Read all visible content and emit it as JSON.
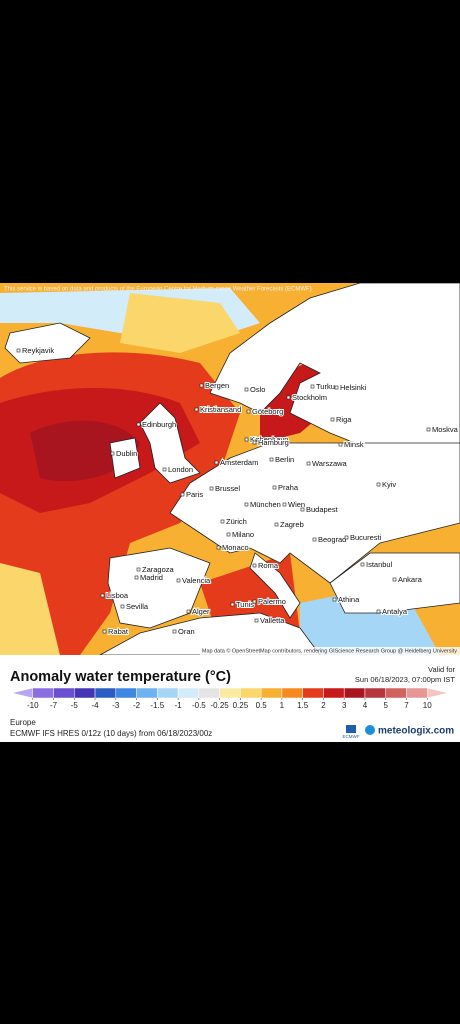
{
  "header": {
    "notice": "This service is based on data and products of the European Centre for Medium-range Weather Forecasts (ECMWF)"
  },
  "map": {
    "attribution": "Map data © OpenStreetMap contributors, rendering GIScience Research Group @ Heidelberg University",
    "cities": [
      "Reykjavik",
      "Bergen",
      "Oslo",
      "Stockholm",
      "Turku",
      "Helsinki",
      "Kristiansand",
      "Göteborg",
      "København",
      "Edinburgh",
      "Dublin",
      "London",
      "Amsterdam",
      "Hamburg",
      "Berlin",
      "Brussel",
      "Paris",
      "Warszawa",
      "Riga",
      "Minsk",
      "Moskva",
      "Kyiv",
      "Praha",
      "Wien",
      "München",
      "Zürich",
      "Milano",
      "Budapest",
      "Zagreb",
      "Beograd",
      "Bucuresti",
      "Monaco",
      "Roma",
      "Zaragoza",
      "Madrid",
      "Lisboa",
      "Sevilla",
      "Valencia",
      "Alger",
      "Tunis",
      "Palermo",
      "Valletta",
      "Athina",
      "Istanbul",
      "Ankara",
      "Antalya",
      "Rabat",
      "Oran"
    ]
  },
  "legend": {
    "title": "Anomaly water temperature (°C)",
    "valid_label": "Valid for",
    "valid_time": "Sun 06/18/2023, 07:00pm IST",
    "ticks": [
      -10,
      -7,
      -5,
      -4,
      -3,
      -2,
      -1.5,
      -1,
      -0.5,
      -0.25,
      0.25,
      0.5,
      1,
      1.5,
      2,
      3,
      4,
      5,
      7,
      10
    ],
    "colors": [
      "#b9a6f2",
      "#8c6de2",
      "#6a4fd0",
      "#4535b2",
      "#2b5cc2",
      "#3f87e2",
      "#70b2f1",
      "#a6d6f6",
      "#d2ecf9",
      "#e4e4e4",
      "#fbeba2",
      "#fbd66b",
      "#f8b032",
      "#f68a1f",
      "#e43b1c",
      "#c7181a",
      "#a8151e",
      "#b5363d",
      "#d1625f",
      "#e69693",
      "#f4c5c1"
    ]
  },
  "footer": {
    "region": "Europe",
    "model": "ECMWF IFS HRES 0/12z (10 days) from 06/18/2023/00z",
    "ecmwf": "ECMWF",
    "brand": "meteologix.com"
  }
}
